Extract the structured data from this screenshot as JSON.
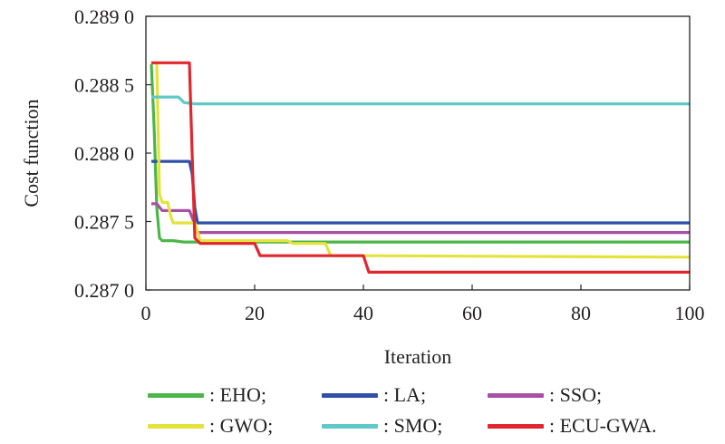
{
  "chart_data": {
    "type": "line",
    "xlabel": "Iteration",
    "ylabel": "Cost function",
    "xlim": [
      0,
      100
    ],
    "ylim": [
      0.287,
      0.289
    ],
    "xticks": [
      0,
      20,
      40,
      60,
      80,
      100
    ],
    "xtick_labels": [
      "0",
      "20",
      "40",
      "60",
      "80",
      "100"
    ],
    "yticks": [
      0.287,
      0.2875,
      0.288,
      0.2885,
      0.289
    ],
    "ytick_labels": [
      "0.287 0",
      "0.287 5",
      "0.288 0",
      "0.288 5",
      "0.289 0"
    ],
    "grid": false,
    "legend_position": "bottom",
    "series": [
      {
        "name": ": EHO;",
        "color": "#4cb649",
        "x": [
          1,
          1.5,
          2,
          2.5,
          3,
          5,
          7,
          8,
          10,
          20,
          100
        ],
        "y": [
          0.28865,
          0.2882,
          0.2876,
          0.28738,
          0.28736,
          0.28736,
          0.28735,
          0.28735,
          0.28735,
          0.28735,
          0.28735
        ]
      },
      {
        "name": ": LA;",
        "color": "#2f4fa8",
        "x": [
          1,
          8,
          8.5,
          9,
          9.5,
          10,
          100
        ],
        "y": [
          0.28794,
          0.28794,
          0.28785,
          0.2876,
          0.28749,
          0.28749,
          0.28749
        ]
      },
      {
        "name": ": SSO;",
        "color": "#a84fa8",
        "x": [
          1,
          2,
          3,
          8,
          9,
          9.5,
          10,
          100
        ],
        "y": [
          0.28763,
          0.28763,
          0.28758,
          0.28758,
          0.28748,
          0.28742,
          0.28742,
          0.28742
        ]
      },
      {
        "name": ": GWO;",
        "color": "#e4e33c",
        "x": [
          1,
          2,
          2.5,
          3,
          4,
          4.5,
          5,
          9,
          10,
          26,
          27,
          33,
          34,
          40,
          100
        ],
        "y": [
          0.28866,
          0.28866,
          0.2877,
          0.28764,
          0.28764,
          0.28755,
          0.28749,
          0.28749,
          0.28736,
          0.28736,
          0.28734,
          0.28734,
          0.28725,
          0.28725,
          0.28724
        ]
      },
      {
        "name": ": SMO;",
        "color": "#5fc8c8",
        "x": [
          1,
          6,
          7,
          9,
          100
        ],
        "y": [
          0.28841,
          0.28841,
          0.28837,
          0.28836,
          0.28836
        ]
      },
      {
        "name": ": ECU-GWA.",
        "color": "#e1262d",
        "x": [
          1,
          8,
          8.5,
          9,
          10,
          20,
          21,
          40,
          41,
          100
        ],
        "y": [
          0.28866,
          0.28866,
          0.288,
          0.28738,
          0.28734,
          0.28734,
          0.28725,
          0.28725,
          0.28713,
          0.28713
        ]
      }
    ]
  }
}
